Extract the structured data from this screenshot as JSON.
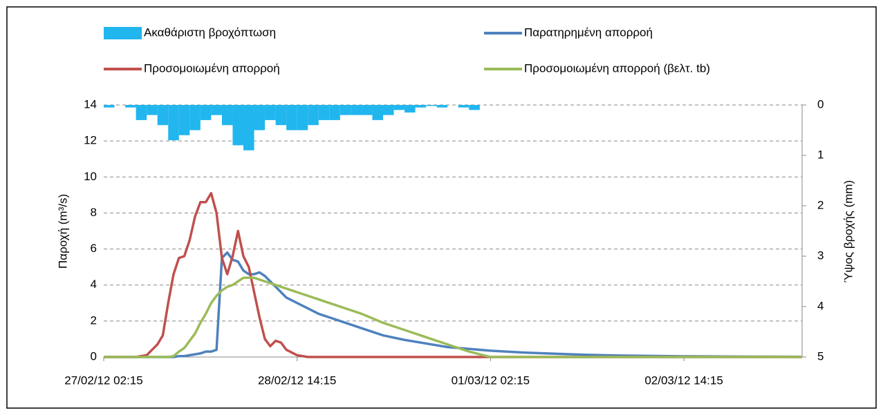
{
  "chart_data": {
    "type": "line",
    "y_label": "Παροχή (m³/s)",
    "y2_label": "Ύψος βροχής (mm)",
    "x": [
      "27/02/12 02:15",
      "27/02/12 08:15",
      "27/02/12 10:15",
      "27/02/12 11:15",
      "27/02/12 12:15",
      "27/02/12 13:15",
      "27/02/12 14:15",
      "27/02/12 15:15",
      "27/02/12 16:15",
      "27/02/12 17:15",
      "27/02/12 18:15",
      "27/02/12 19:15",
      "27/02/12 20:15",
      "27/02/12 21:15",
      "27/02/12 22:15",
      "27/02/12 23:15",
      "28/02/12 00:15",
      "28/02/12 01:15",
      "28/02/12 02:15",
      "28/02/12 03:15",
      "28/02/12 04:15",
      "28/02/12 05:15",
      "28/02/12 06:15",
      "28/02/12 07:15",
      "28/02/12 08:15",
      "28/02/12 09:15",
      "28/02/12 10:15",
      "28/02/12 11:15",
      "28/02/12 12:15",
      "28/02/12 14:15",
      "28/02/12 16:15",
      "28/02/12 18:15",
      "28/02/12 20:15",
      "28/02/12 23:15",
      "29/02/12 02:15",
      "29/02/12 06:15",
      "29/02/12 10:15",
      "29/02/12 14:15",
      "29/02/12 18:15",
      "29/02/12 22:15",
      "01/03/12 02:15",
      "01/03/12 08:15",
      "01/03/12 14:15",
      "01/03/12 20:15",
      "02/03/12 02:15",
      "02/03/12 14:15",
      "03/03/12 02:15",
      "03/03/12 12:15"
    ],
    "series": [
      {
        "name": "Ακαθάριστη βροχόπτωση",
        "type": "bar",
        "axis": "y2",
        "color": "#21b6ee",
        "x": [
          "27/02/12 02:15",
          "27/02/12 04:15",
          "27/02/12 06:15",
          "27/02/12 08:15",
          "27/02/12 10:15",
          "27/02/12 12:15",
          "27/02/12 14:15",
          "27/02/12 16:15",
          "27/02/12 18:15",
          "27/02/12 20:15",
          "27/02/12 22:15",
          "28/02/12 00:15",
          "28/02/12 02:15",
          "28/02/12 04:15",
          "28/02/12 06:15",
          "28/02/12 08:15",
          "28/02/12 10:15",
          "28/02/12 12:15",
          "28/02/12 14:15",
          "28/02/12 16:15",
          "28/02/12 18:15",
          "28/02/12 20:15",
          "28/02/12 22:15",
          "29/02/12 00:15",
          "29/02/12 02:15",
          "29/02/12 04:15",
          "29/02/12 06:15",
          "29/02/12 08:15",
          "29/02/12 10:15",
          "29/02/12 12:15",
          "29/02/12 14:15",
          "29/02/12 16:15",
          "29/02/12 18:15",
          "29/02/12 20:15",
          "29/02/12 22:15"
        ],
        "values": [
          0.05,
          0,
          0.05,
          0.3,
          0.2,
          0.4,
          0.7,
          0.6,
          0.5,
          0.3,
          0.2,
          0.4,
          0.8,
          0.9,
          0.5,
          0.3,
          0.4,
          0.5,
          0.5,
          0.4,
          0.3,
          0.3,
          0.2,
          0.2,
          0.2,
          0.3,
          0.2,
          0.1,
          0.15,
          0.05,
          0.02,
          0.05,
          0,
          0.05,
          0.1
        ]
      },
      {
        "name": "Παρατηρημένη απορροή",
        "color": "#4f81bd",
        "values": [
          0,
          0,
          0,
          0,
          0,
          0,
          0,
          0,
          0.05,
          0.05,
          0.1,
          0.15,
          0.2,
          0.3,
          0.3,
          0.4,
          5.5,
          5.8,
          5.4,
          5.3,
          4.8,
          4.6,
          4.6,
          4.7,
          4.5,
          4.2,
          3.9,
          3.6,
          3.3,
          3,
          2.7,
          2.4,
          2.2,
          1.9,
          1.6,
          1.2,
          0.95,
          0.75,
          0.55,
          0.45,
          0.35,
          0.25,
          0.18,
          0.12,
          0.08,
          0.04,
          0.02,
          0.01
        ]
      },
      {
        "name": "Προσομοιωμένη απορροή",
        "color": "#c0504d",
        "values": [
          0,
          0,
          0.1,
          0.4,
          0.7,
          1.2,
          3,
          4.6,
          5.5,
          5.6,
          6.5,
          7.8,
          8.6,
          8.6,
          9.1,
          8,
          5.5,
          4.6,
          5.6,
          7,
          5.6,
          5,
          3.6,
          2.2,
          1,
          0.6,
          0.9,
          0.8,
          0.4,
          0.1,
          0,
          0,
          0,
          0,
          0,
          0,
          0,
          0,
          0,
          0,
          0,
          0,
          0,
          0,
          0,
          0,
          0,
          0
        ]
      },
      {
        "name": "Προσομοιωμένη απορροή (βελτ. tb)",
        "color": "#9bbb59",
        "values": [
          0,
          0,
          0,
          0,
          0,
          0,
          0,
          0.05,
          0.3,
          0.5,
          0.9,
          1.3,
          1.9,
          2.4,
          3,
          3.4,
          3.7,
          3.9,
          4,
          4.2,
          4.4,
          4.4,
          4.4,
          4.3,
          4.2,
          4.1,
          4,
          3.9,
          3.8,
          3.6,
          3.4,
          3.2,
          3,
          2.7,
          2.4,
          1.9,
          1.5,
          1.1,
          0.7,
          0.3,
          0,
          0,
          0,
          0,
          0,
          0,
          0,
          0
        ]
      }
    ],
    "xlim": [
      "27/02/12 02:15",
      "03/03/12 12:15"
    ],
    "xticks": [
      "27/02/12 02:15",
      "28/02/12 14:15",
      "01/03/12 02:15",
      "02/03/12 14:15"
    ],
    "ylim": [
      0,
      14
    ],
    "yticks": [
      0,
      2,
      4,
      6,
      8,
      10,
      12,
      14
    ],
    "y2lim": [
      0,
      5
    ],
    "y2ticks": [
      0,
      1,
      2,
      3,
      4,
      5
    ],
    "y2_inverted": true,
    "grid": true
  }
}
